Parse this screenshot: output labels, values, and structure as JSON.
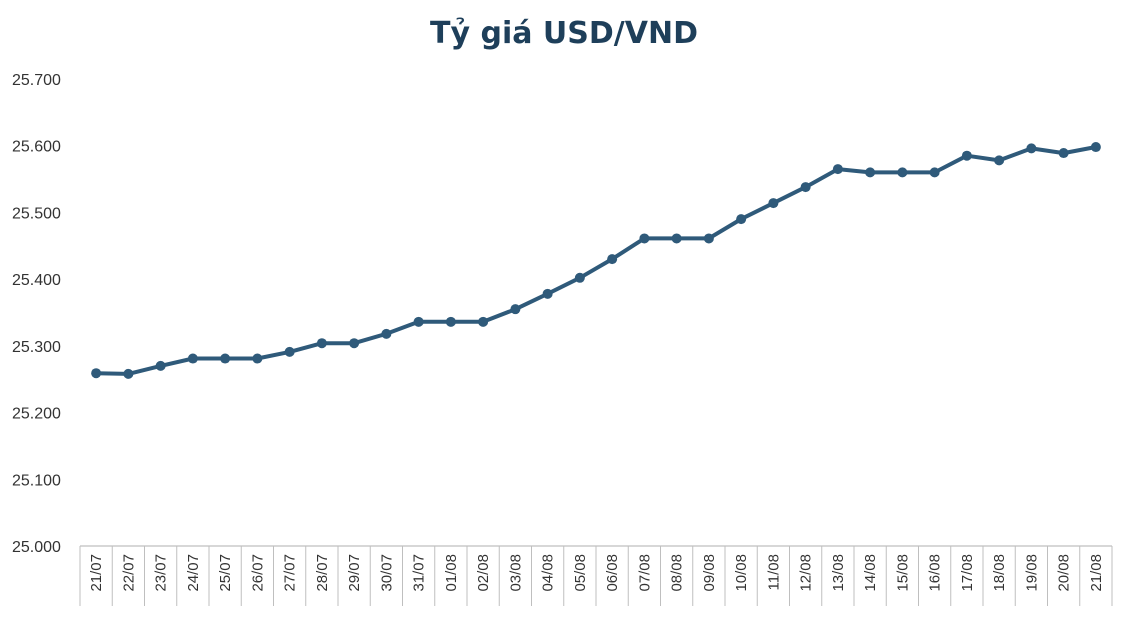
{
  "chart_data": {
    "type": "line",
    "title": "Tỷ giá USD/VND",
    "xlabel": "",
    "ylabel": "",
    "categories": [
      "21/07",
      "22/07",
      "23/07",
      "24/07",
      "25/07",
      "26/07",
      "27/07",
      "28/07",
      "29/07",
      "30/07",
      "31/07",
      "01/08",
      "02/08",
      "03/08",
      "04/08",
      "05/08",
      "06/08",
      "07/08",
      "08/08",
      "09/08",
      "10/08",
      "11/08",
      "12/08",
      "13/08",
      "14/08",
      "15/08",
      "16/08",
      "17/08",
      "18/08",
      "19/08",
      "20/08",
      "21/08"
    ],
    "series": [
      {
        "values": [
          25259,
          25258,
          25270,
          25281,
          25281,
          25281,
          25291,
          25304,
          25304,
          25318,
          25336,
          25336,
          25336,
          25355,
          25378,
          25402,
          25430,
          25461,
          25461,
          25461,
          25490,
          25514,
          25538,
          25565,
          25560,
          25560,
          25560,
          25585,
          25578,
          25596,
          25589,
          25598
        ],
        "color": "#2f5a7a"
      }
    ],
    "yticks": [
      "25.000",
      "25.100",
      "25.200",
      "25.300",
      "25.400",
      "25.500",
      "25.600",
      "25.700"
    ],
    "ylim": [
      25000,
      25700
    ],
    "grid": false,
    "legend": "none"
  }
}
